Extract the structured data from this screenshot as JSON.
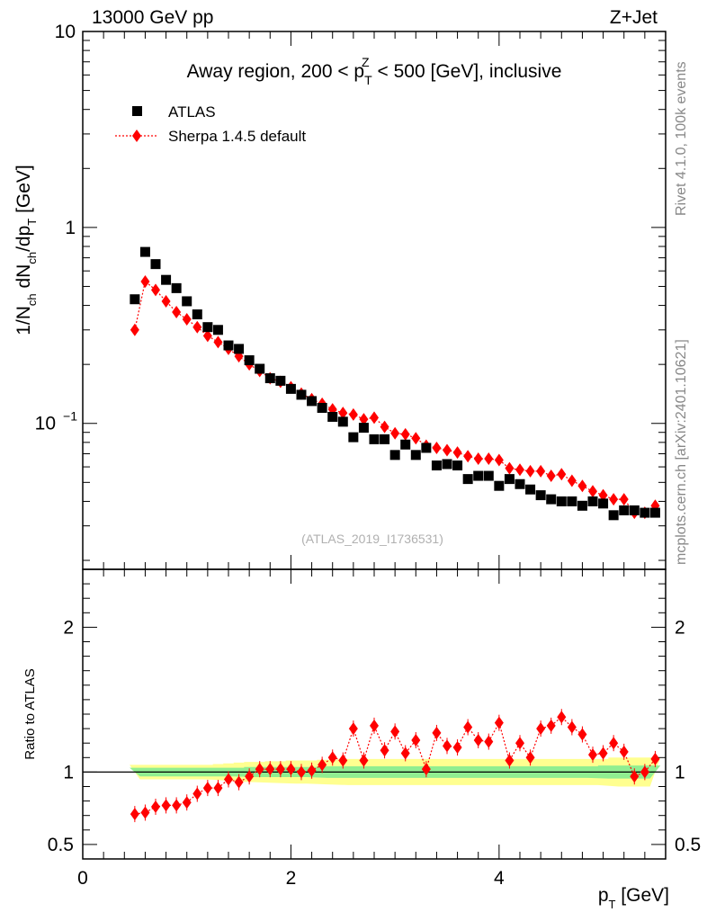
{
  "header": {
    "left": "13000 GeV pp",
    "right": "Z+Jet"
  },
  "side": {
    "rivet": "Rivet 4.1.0,  100k events",
    "mcplots": "mcplots.cern.ch [arXiv:2401.10621]"
  },
  "colors": {
    "atlas": "#000000",
    "sherpa": "#ff0000",
    "band_inner": "#90ee90",
    "band_outer": "#ffff90"
  },
  "chart_data": [
    {
      "type": "scatter",
      "title": "Away region, 200 < p_T^Z < 500 [GeV], inclusive",
      "title_parts": {
        "pre": "Away region, 200 < p",
        "sup": "Z",
        "sub": "T",
        "post": " < 500 [GeV], inclusive"
      },
      "ylabel": "1/N_ch dN_ch/dp_T [GeV]",
      "ylabel_parts": {
        "a": "1/N",
        "a_sub": "ch",
        "b": " dN",
        "b_sub": "ch",
        "c": "/dp",
        "c_sub": "T",
        "d": " [GeV]"
      },
      "yscale": "log",
      "ylim": [
        0.018,
        10
      ],
      "yticks": [
        {
          "value": 10,
          "label": "10"
        },
        {
          "value": 1,
          "label": "1"
        },
        {
          "value": 0.1,
          "base": "10",
          "exp": "−1"
        }
      ],
      "watermark": "(ATLAS_2019_I1736531)",
      "legend": {
        "position": "top-left",
        "entries": [
          "ATLAS",
          "Sherpa 1.4.5 default"
        ]
      },
      "x": [
        0.5,
        0.6,
        0.7,
        0.8,
        0.9,
        1.0,
        1.1,
        1.2,
        1.3,
        1.4,
        1.5,
        1.6,
        1.7,
        1.8,
        1.9,
        2.0,
        2.1,
        2.2,
        2.3,
        2.4,
        2.5,
        2.6,
        2.7,
        2.8,
        2.9,
        3.0,
        3.1,
        3.2,
        3.3,
        3.4,
        3.5,
        3.6,
        3.7,
        3.8,
        3.9,
        4.0,
        4.1,
        4.2,
        4.3,
        4.4,
        4.5,
        4.6,
        4.7,
        4.8,
        4.9,
        5.0,
        5.1,
        5.2,
        5.3,
        5.4,
        5.5
      ],
      "series": [
        {
          "name": "ATLAS",
          "marker": "square",
          "values": [
            0.43,
            0.75,
            0.65,
            0.54,
            0.49,
            0.42,
            0.36,
            0.31,
            0.3,
            0.25,
            0.24,
            0.21,
            0.19,
            0.17,
            0.165,
            0.15,
            0.14,
            0.13,
            0.12,
            0.108,
            0.102,
            0.085,
            0.095,
            0.083,
            0.083,
            0.069,
            0.078,
            0.069,
            0.075,
            0.061,
            0.062,
            0.061,
            0.052,
            0.054,
            0.054,
            0.048,
            0.052,
            0.049,
            0.046,
            0.043,
            0.041,
            0.04,
            0.04,
            0.038,
            0.04,
            0.039,
            0.034,
            0.036,
            0.036,
            0.035,
            0.035
          ]
        },
        {
          "name": "Sherpa 1.4.5 default",
          "marker": "diamond",
          "values": [
            0.3,
            0.53,
            0.48,
            0.42,
            0.37,
            0.34,
            0.31,
            0.28,
            0.26,
            0.24,
            0.22,
            0.2,
            0.185,
            0.17,
            0.163,
            0.153,
            0.142,
            0.133,
            0.126,
            0.118,
            0.113,
            0.111,
            0.105,
            0.107,
            0.096,
            0.089,
            0.088,
            0.084,
            0.077,
            0.075,
            0.073,
            0.071,
            0.068,
            0.066,
            0.066,
            0.065,
            0.059,
            0.058,
            0.057,
            0.057,
            0.054,
            0.055,
            0.051,
            0.048,
            0.045,
            0.043,
            0.041,
            0.041,
            0.035,
            0.035,
            0.038
          ]
        }
      ]
    },
    {
      "type": "line",
      "ylabel": "Ratio to ATLAS",
      "xlabel": "p_T [GeV]",
      "xlabel_parts": {
        "a": "p",
        "a_sub": "T",
        "b": " [GeV]"
      },
      "xlim": [
        0,
        5.6
      ],
      "ylim": [
        0.4,
        2.4
      ],
      "xticks": [
        {
          "value": 0,
          "label": "0"
        },
        {
          "value": 2,
          "label": "2"
        },
        {
          "value": 4,
          "label": "4"
        }
      ],
      "yticks": [
        {
          "value": 0.5,
          "label": "0.5"
        },
        {
          "value": 1,
          "label": "1"
        },
        {
          "value": 2,
          "label": "2"
        }
      ],
      "reference_line": 1,
      "band_inner_halfwidth": [
        0.03,
        0.03,
        0.03,
        0.03,
        0.03,
        0.03,
        0.03,
        0.03,
        0.03,
        0.03,
        0.03,
        0.035,
        0.035,
        0.035,
        0.035,
        0.035,
        0.035,
        0.035,
        0.04,
        0.04,
        0.04,
        0.04,
        0.04,
        0.04,
        0.04,
        0.04,
        0.04,
        0.04,
        0.04,
        0.04,
        0.04,
        0.04,
        0.04,
        0.04,
        0.04,
        0.04,
        0.04,
        0.04,
        0.04,
        0.04,
        0.04,
        0.04,
        0.04,
        0.04,
        0.04,
        0.045,
        0.045,
        0.045,
        0.045,
        0.045,
        0.045
      ],
      "band_outer_halfwidth": [
        0.05,
        0.05,
        0.05,
        0.05,
        0.05,
        0.05,
        0.05,
        0.05,
        0.055,
        0.06,
        0.065,
        0.07,
        0.07,
        0.075,
        0.075,
        0.08,
        0.08,
        0.08,
        0.085,
        0.085,
        0.09,
        0.09,
        0.09,
        0.09,
        0.09,
        0.09,
        0.09,
        0.09,
        0.09,
        0.09,
        0.09,
        0.09,
        0.09,
        0.09,
        0.09,
        0.09,
        0.09,
        0.09,
        0.09,
        0.09,
        0.09,
        0.09,
        0.09,
        0.09,
        0.09,
        0.09,
        0.1,
        0.1,
        0.1,
        0.1,
        0.1
      ],
      "series": [
        {
          "name": "Sherpa 1.4.5 default / ATLAS",
          "values": [
            0.71,
            0.72,
            0.76,
            0.77,
            0.77,
            0.79,
            0.85,
            0.89,
            0.89,
            0.95,
            0.93,
            0.97,
            1.02,
            1.02,
            1.02,
            1.02,
            1.0,
            1.01,
            1.05,
            1.1,
            1.08,
            1.3,
            1.08,
            1.32,
            1.15,
            1.28,
            1.13,
            1.22,
            1.02,
            1.27,
            1.18,
            1.17,
            1.31,
            1.22,
            1.21,
            1.34,
            1.08,
            1.2,
            1.1,
            1.3,
            1.32,
            1.38,
            1.31,
            1.26,
            1.12,
            1.13,
            1.2,
            1.14,
            0.97,
            1.0,
            1.09
          ]
        }
      ]
    }
  ]
}
